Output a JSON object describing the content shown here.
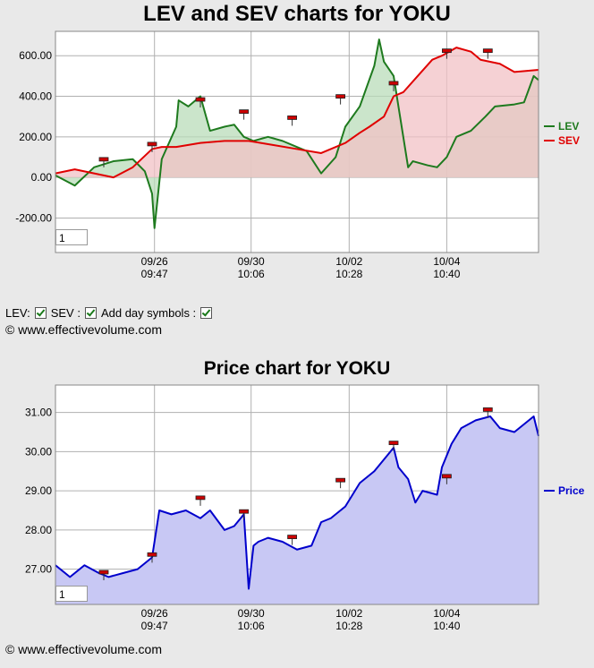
{
  "page": {
    "copyright_top": "© www.effectivevolume.com",
    "copyright_bottom": "© www.effectivevolume.com",
    "controls": {
      "lev_label": "LEV:",
      "sev_label": "SEV :",
      "day_symbols_label": "Add day symbols :"
    }
  },
  "colors": {
    "lev": "#1e7a1e",
    "sev": "#e00000",
    "price": "#0000cc",
    "lev_fill": "#b9dcb9",
    "sev_fill": "#f2c2c6",
    "overlap_fill": "#cdbca8",
    "price_fill": "#c8c8f4",
    "plot_bg": "#ffffff",
    "grid": "#b0b0b0",
    "marker": "#cc0000"
  },
  "chart_data": [
    {
      "type": "line",
      "title": "LEV and SEV charts for YOKU",
      "zoom_value": "1",
      "yticks": [
        "600.00",
        "400.00",
        "200.00",
        "0.00",
        "-200.00"
      ],
      "ytick_values": [
        600,
        400,
        200,
        0,
        -200
      ],
      "ylim": [
        -370,
        720
      ],
      "xlim": [
        0,
        1
      ],
      "xticks": [
        {
          "x": 0.205,
          "date": "09/26",
          "time": "09:47"
        },
        {
          "x": 0.405,
          "date": "09/30",
          "time": "10:06"
        },
        {
          "x": 0.608,
          "date": "10/02",
          "time": "10:28"
        },
        {
          "x": 0.81,
          "date": "10/04",
          "time": "10:40"
        }
      ],
      "legend": [
        {
          "name": "LEV",
          "color": "#1e7a1e"
        },
        {
          "name": "SEV",
          "color": "#e00000"
        }
      ],
      "series": [
        {
          "name": "LEV",
          "x": [
            0,
            0.04,
            0.08,
            0.12,
            0.16,
            0.185,
            0.2,
            0.205,
            0.22,
            0.25,
            0.255,
            0.275,
            0.3,
            0.32,
            0.35,
            0.37,
            0.39,
            0.41,
            0.44,
            0.47,
            0.5,
            0.52,
            0.55,
            0.58,
            0.6,
            0.63,
            0.66,
            0.67,
            0.68,
            0.7,
            0.72,
            0.73,
            0.74,
            0.77,
            0.79,
            0.81,
            0.83,
            0.86,
            0.89,
            0.91,
            0.95,
            0.97,
            0.99,
            1.0
          ],
          "y": [
            10,
            -40,
            50,
            80,
            90,
            30,
            -80,
            -250,
            90,
            250,
            380,
            350,
            400,
            230,
            250,
            260,
            200,
            180,
            200,
            180,
            150,
            130,
            20,
            100,
            250,
            350,
            550,
            680,
            570,
            500,
            200,
            50,
            80,
            60,
            50,
            100,
            200,
            230,
            300,
            350,
            360,
            370,
            500,
            480
          ]
        },
        {
          "name": "SEV",
          "x": [
            0,
            0.04,
            0.08,
            0.12,
            0.16,
            0.2,
            0.22,
            0.25,
            0.3,
            0.35,
            0.4,
            0.45,
            0.5,
            0.55,
            0.6,
            0.63,
            0.65,
            0.68,
            0.7,
            0.72,
            0.75,
            0.78,
            0.8,
            0.83,
            0.86,
            0.88,
            0.92,
            0.95,
            1.0
          ],
          "y": [
            20,
            40,
            20,
            0,
            50,
            140,
            150,
            150,
            170,
            180,
            180,
            160,
            140,
            120,
            170,
            220,
            250,
            300,
            400,
            420,
            500,
            580,
            600,
            640,
            620,
            580,
            560,
            520,
            530
          ]
        },
        {
          "name": "Day symbols",
          "x": [
            0.1,
            0.2,
            0.3,
            0.39,
            0.49,
            0.59,
            0.7,
            0.81,
            0.895
          ],
          "y": [
            85,
            160,
            380,
            320,
            290,
            395,
            460,
            620,
            620
          ]
        }
      ]
    },
    {
      "type": "area",
      "title": "Price chart for YOKU",
      "zoom_value": "1",
      "yticks": [
        "31.00",
        "30.00",
        "29.00",
        "28.00",
        "27.00"
      ],
      "ytick_values": [
        31,
        30,
        29,
        28,
        27
      ],
      "ylim": [
        26.1,
        31.7
      ],
      "xlim": [
        0,
        1
      ],
      "xticks": [
        {
          "x": 0.205,
          "date": "09/26",
          "time": "09:47"
        },
        {
          "x": 0.405,
          "date": "09/30",
          "time": "10:06"
        },
        {
          "x": 0.608,
          "date": "10/02",
          "time": "10:28"
        },
        {
          "x": 0.81,
          "date": "10/04",
          "time": "10:40"
        }
      ],
      "legend": [
        {
          "name": "Price",
          "color": "#0000cc"
        }
      ],
      "series": [
        {
          "name": "Price",
          "x": [
            0,
            0.03,
            0.06,
            0.09,
            0.11,
            0.14,
            0.17,
            0.19,
            0.2,
            0.215,
            0.24,
            0.27,
            0.3,
            0.32,
            0.35,
            0.37,
            0.39,
            0.4,
            0.41,
            0.42,
            0.44,
            0.47,
            0.5,
            0.53,
            0.55,
            0.57,
            0.6,
            0.63,
            0.66,
            0.68,
            0.7,
            0.71,
            0.73,
            0.745,
            0.76,
            0.79,
            0.8,
            0.82,
            0.84,
            0.87,
            0.9,
            0.92,
            0.95,
            0.97,
            0.99,
            1.0
          ],
          "y": [
            27.1,
            26.8,
            27.1,
            26.9,
            26.8,
            26.9,
            27.0,
            27.2,
            27.3,
            28.5,
            28.4,
            28.5,
            28.3,
            28.5,
            28.0,
            28.1,
            28.4,
            26.5,
            27.6,
            27.7,
            27.8,
            27.7,
            27.5,
            27.6,
            28.2,
            28.3,
            28.6,
            29.2,
            29.5,
            29.8,
            30.1,
            29.6,
            29.3,
            28.7,
            29.0,
            28.9,
            29.6,
            30.2,
            30.6,
            30.8,
            30.9,
            30.6,
            30.5,
            30.7,
            30.9,
            30.4
          ]
        },
        {
          "name": "Day symbols",
          "x": [
            0.1,
            0.2,
            0.3,
            0.39,
            0.49,
            0.59,
            0.7,
            0.81,
            0.895
          ],
          "y": [
            26.9,
            27.35,
            28.8,
            28.45,
            27.8,
            29.25,
            30.2,
            29.35,
            31.05
          ]
        }
      ]
    }
  ]
}
